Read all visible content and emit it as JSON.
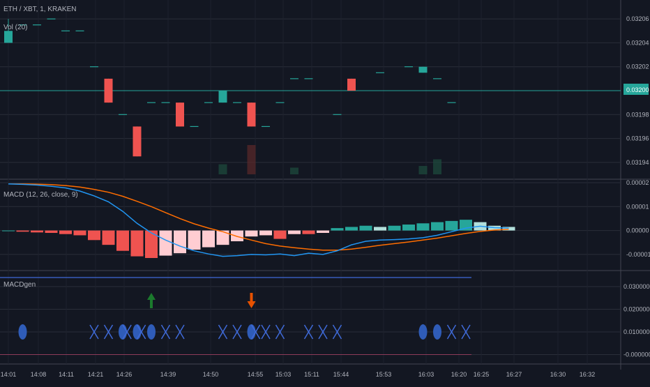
{
  "colors": {
    "background": "#131722",
    "grid": "#2a2e39",
    "bull": "#26a69a",
    "bear": "#ef5350",
    "hist_light_pos": "#b2dfdb",
    "hist_light_neg": "#ffcdd2",
    "macd_line": "#2196f3",
    "signal_line": "#ff6d00",
    "x_marker": "#3f6ad8",
    "price_tag": "#26a69a"
  },
  "price_pane": {
    "symbol_label": "ETH / XBT, 1, KRAKEN",
    "volume_label": "Vol (20)",
    "axis_ticks": [
      "0.03206",
      "0.03204",
      "0.03202",
      "0.03200",
      "0.03198",
      "0.03196",
      "0.03194"
    ],
    "current_price": "0.03200"
  },
  "macd_pane": {
    "label": "MACD (12, 26, close, 9)",
    "axis_ticks": [
      "0.00002",
      "0.00001",
      "0.00000",
      "-0.00001"
    ]
  },
  "macdgen_pane": {
    "label": "MACDgen",
    "axis_ticks": [
      "0.0300000",
      "0.0200000",
      "0.0100000",
      "-0.0000000"
    ]
  },
  "time_axis": {
    "ticks": [
      "14:01",
      "14:08",
      "14:11",
      "14:21",
      "14:26",
      "14:39",
      "14:50",
      "14:55",
      "15:03",
      "15:11",
      "15:44",
      "15:53",
      "16:03",
      "16:20",
      "16:25",
      "16:27",
      "16:30",
      "16:32"
    ]
  },
  "chart_data": {
    "type": "candlestick",
    "price_ylim": [
      0.03193,
      0.03207
    ],
    "candles": [
      {
        "t": 0,
        "o": 0.03204,
        "h": 0.03206,
        "l": 0.03204,
        "c": 0.03205
      },
      {
        "t": 1,
        "o": 0.032055,
        "h": 0.032055,
        "l": 0.032055,
        "c": 0.032055
      },
      {
        "t": 2,
        "o": 0.032055,
        "h": 0.032055,
        "l": 0.032055,
        "c": 0.032055
      },
      {
        "t": 3,
        "o": 0.03206,
        "h": 0.03206,
        "l": 0.03206,
        "c": 0.03206
      },
      {
        "t": 4,
        "o": 0.03205,
        "h": 0.03205,
        "l": 0.03205,
        "c": 0.03205
      },
      {
        "t": 5,
        "o": 0.03205,
        "h": 0.03205,
        "l": 0.03205,
        "c": 0.03205
      },
      {
        "t": 6,
        "o": 0.03202,
        "h": 0.03202,
        "l": 0.03202,
        "c": 0.03202
      },
      {
        "t": 7,
        "o": 0.03201,
        "h": 0.03201,
        "l": 0.03199,
        "c": 0.03199
      },
      {
        "t": 8,
        "o": 0.03198,
        "h": 0.03198,
        "l": 0.03198,
        "c": 0.03198
      },
      {
        "t": 9,
        "o": 0.03197,
        "h": 0.03197,
        "l": 0.031945,
        "c": 0.031945
      },
      {
        "t": 10,
        "o": 0.03199,
        "h": 0.03199,
        "l": 0.03199,
        "c": 0.03199
      },
      {
        "t": 11,
        "o": 0.03199,
        "h": 0.03199,
        "l": 0.03199,
        "c": 0.03199
      },
      {
        "t": 12,
        "o": 0.03199,
        "h": 0.03199,
        "l": 0.03197,
        "c": 0.03197
      },
      {
        "t": 13,
        "o": 0.03197,
        "h": 0.03197,
        "l": 0.03197,
        "c": 0.03197
      },
      {
        "t": 14,
        "o": 0.03199,
        "h": 0.03199,
        "l": 0.03199,
        "c": 0.03199
      },
      {
        "t": 15,
        "o": 0.03199,
        "h": 0.032,
        "l": 0.03199,
        "c": 0.032
      },
      {
        "t": 16,
        "o": 0.03199,
        "h": 0.03199,
        "l": 0.03199,
        "c": 0.03199
      },
      {
        "t": 17,
        "o": 0.03199,
        "h": 0.03199,
        "l": 0.03197,
        "c": 0.03197
      },
      {
        "t": 18,
        "o": 0.03197,
        "h": 0.03197,
        "l": 0.03197,
        "c": 0.03197
      },
      {
        "t": 19,
        "o": 0.03199,
        "h": 0.03199,
        "l": 0.03199,
        "c": 0.03199
      },
      {
        "t": 20,
        "o": 0.03201,
        "h": 0.03201,
        "l": 0.03201,
        "c": 0.03201
      },
      {
        "t": 21,
        "o": 0.03201,
        "h": 0.03201,
        "l": 0.03201,
        "c": 0.03201
      },
      {
        "t": 23,
        "o": 0.03198,
        "h": 0.03198,
        "l": 0.03198,
        "c": 0.03198
      },
      {
        "t": 24,
        "o": 0.03201,
        "h": 0.03201,
        "l": 0.032,
        "c": 0.032
      },
      {
        "t": 26,
        "o": 0.032015,
        "h": 0.032015,
        "l": 0.032015,
        "c": 0.032015
      },
      {
        "t": 28,
        "o": 0.03202,
        "h": 0.03202,
        "l": 0.03202,
        "c": 0.03202
      },
      {
        "t": 29,
        "o": 0.032015,
        "h": 0.03202,
        "l": 0.032015,
        "c": 0.03202
      },
      {
        "t": 30,
        "o": 0.03201,
        "h": 0.03201,
        "l": 0.03201,
        "c": 0.03201
      },
      {
        "t": 31,
        "o": 0.03199,
        "h": 0.03199,
        "l": 0.03199,
        "c": 0.03199
      }
    ],
    "volumes": [
      {
        "t": 15,
        "v": 1.2,
        "up": true
      },
      {
        "t": 17,
        "v": 3.5,
        "up": false
      },
      {
        "t": 20,
        "v": 0.8,
        "up": true
      },
      {
        "t": 29,
        "v": 1.0,
        "up": true
      },
      {
        "t": 30,
        "v": 1.8,
        "up": true
      }
    ],
    "macd_ylim": [
      -1.5e-05,
      2e-05
    ],
    "histogram": [
      0.0,
      -5e-07,
      -8e-07,
      -1e-06,
      -1.5e-06,
      -2e-06,
      -4e-06,
      -6e-06,
      -8.5e-06,
      -1.08e-05,
      -1.15e-05,
      -1.05e-05,
      -9.5e-06,
      -8e-06,
      -7e-06,
      -6e-06,
      -4.5e-06,
      -2.5e-06,
      -2e-06,
      -3.5e-06,
      -1.5e-06,
      -1.5e-06,
      -1e-06,
      1e-06,
      1.5e-06,
      2e-06,
      1.5e-06,
      2e-06,
      2.5e-06,
      3e-06,
      3.5e-06,
      4e-06,
      4.5e-06,
      3.5e-06,
      2e-06,
      1.5e-06
    ],
    "macd_line": [
      1.95e-05,
      1.93e-05,
      1.9e-05,
      1.85e-05,
      1.78e-05,
      1.65e-05,
      1.45e-05,
      1.2e-05,
      8e-06,
      3e-06,
      -1e-06,
      -4e-06,
      -6.5e-06,
      -8.5e-06,
      -9.8e-06,
      -1.08e-05,
      -1.05e-05,
      -1e-05,
      -1.02e-05,
      -9.8e-06,
      -1.05e-05,
      -9.5e-06,
      -1e-05,
      -8.5e-06,
      -6e-06,
      -4.5e-06,
      -4e-06,
      -3.8e-06,
      -3.5e-06,
      -3e-06,
      -2e-06,
      -5e-07,
      1e-06,
      1.8e-06,
      1.2e-06,
      1e-06
    ],
    "signal_line": [
      1.95e-05,
      1.95e-05,
      1.94e-05,
      1.92e-05,
      1.88e-05,
      1.82e-05,
      1.72e-05,
      1.6e-05,
      1.43e-05,
      1.22e-05,
      1e-05,
      7.5e-06,
      5e-06,
      2.8e-06,
      1e-06,
      -5e-07,
      -2.5e-06,
      -4e-06,
      -5.5e-06,
      -6.5e-06,
      -7.2e-06,
      -7.8e-06,
      -8.2e-06,
      -8.2e-06,
      -7.8e-06,
      -7e-06,
      -6.2e-06,
      -5.5e-06,
      -4.8e-06,
      -4e-06,
      -3.2e-06,
      -2.2e-06,
      -1.2e-06,
      -4e-07,
      2e-07,
      5e-07
    ],
    "macdgen_ylim": [
      -0.002,
      0.034
    ],
    "markers": [
      {
        "t": 1,
        "shape": "circle"
      },
      {
        "t": 6,
        "shape": "x"
      },
      {
        "t": 7,
        "shape": "x"
      },
      {
        "t": 8,
        "shape": "circle"
      },
      {
        "t": 8.3,
        "shape": "x"
      },
      {
        "t": 9,
        "shape": "circle"
      },
      {
        "t": 9.3,
        "shape": "x"
      },
      {
        "t": 10,
        "shape": "circle"
      },
      {
        "t": 11,
        "shape": "x"
      },
      {
        "t": 12,
        "shape": "x"
      },
      {
        "t": 15,
        "shape": "x"
      },
      {
        "t": 16,
        "shape": "x"
      },
      {
        "t": 17,
        "shape": "circle"
      },
      {
        "t": 17.3,
        "shape": "x"
      },
      {
        "t": 18,
        "shape": "x"
      },
      {
        "t": 19,
        "shape": "x"
      },
      {
        "t": 21,
        "shape": "x"
      },
      {
        "t": 22,
        "shape": "x"
      },
      {
        "t": 23,
        "shape": "x"
      },
      {
        "t": 29,
        "shape": "circle"
      },
      {
        "t": 30,
        "shape": "circle"
      },
      {
        "t": 31,
        "shape": "x"
      },
      {
        "t": 32,
        "shape": "x"
      }
    ],
    "arrows": [
      {
        "t": 10,
        "dir": "up",
        "color": "#1b7a2d"
      },
      {
        "t": 17,
        "dir": "down",
        "color": "#e65100"
      }
    ]
  }
}
